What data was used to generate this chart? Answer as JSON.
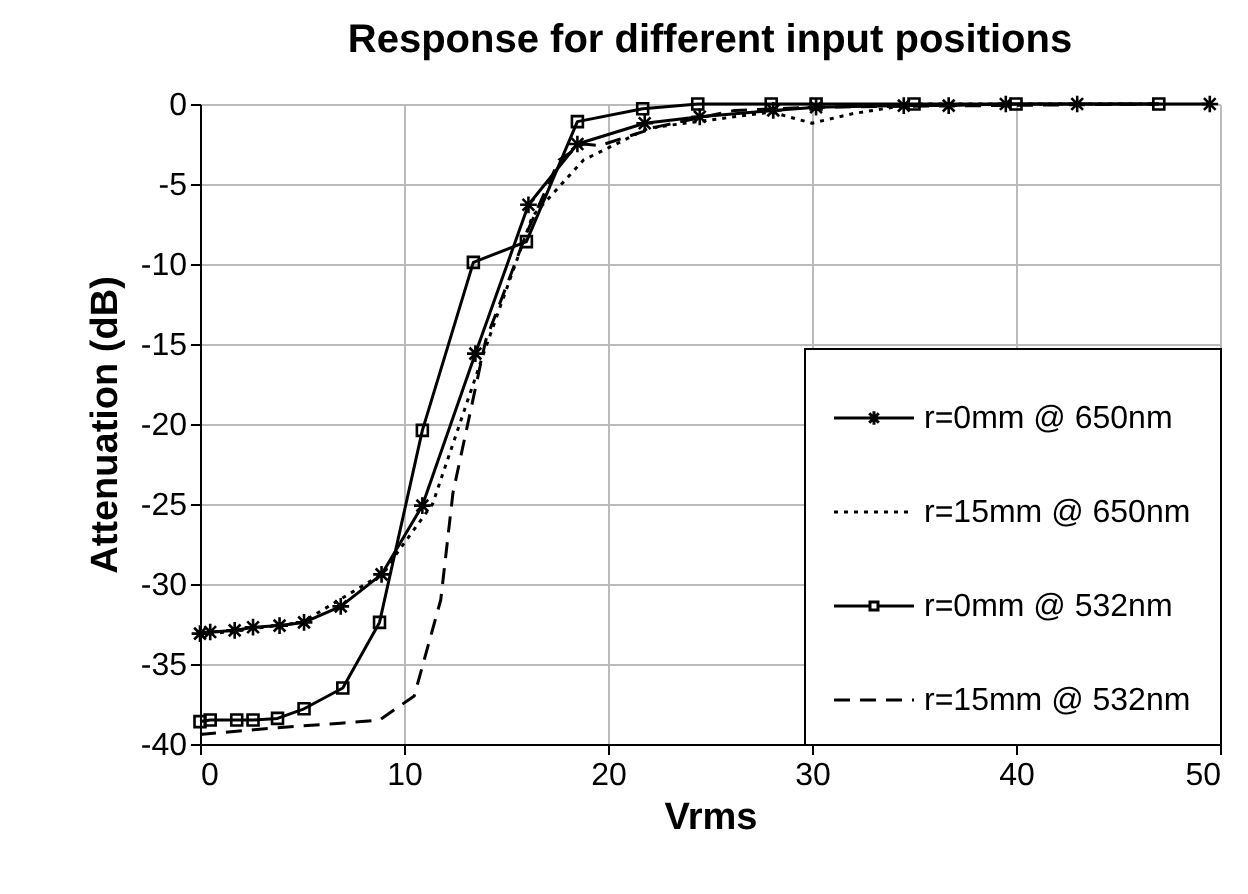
{
  "chart_data": {
    "type": "line",
    "title": "Response for different input positions",
    "xlabel": "Vrms",
    "ylabel": "Attenuation (dB)",
    "xlim": [
      0,
      50
    ],
    "xticks": [
      0,
      10,
      20,
      30,
      40,
      50
    ],
    "ylim": [
      -40,
      0
    ],
    "yticks": [
      -40,
      -35,
      -30,
      -25,
      -20,
      -15,
      -10,
      -5,
      0
    ],
    "grid": true,
    "legend": "bottom right",
    "series": [
      {
        "name": "r=0mm @ 650nm",
        "color": "#000000",
        "marker": "cross",
        "line_style": "solid",
        "x": [
          0,
          0.5,
          1.7,
          2.6,
          3.9,
          5.1,
          6.9,
          8.9,
          10.9,
          13.5,
          16.1,
          18.5,
          21.8,
          24.5,
          28.1,
          30.2,
          34.5,
          36.7,
          39.5,
          43,
          49.5
        ],
        "values": [
          -33.1,
          -33,
          -32.9,
          -32.7,
          -32.6,
          -32.4,
          -31.4,
          -29.4,
          -25.1,
          -15.6,
          -6.3,
          -2.5,
          -1.2,
          -0.8,
          -0.4,
          -0.2,
          -0.1,
          -0.1,
          0,
          0,
          0
        ]
      },
      {
        "name": "r=15mm @ 650nm",
        "color": "#000000",
        "marker": "none",
        "line_style": "dotted",
        "x": [
          0,
          5,
          8.9,
          11.4,
          13.9,
          16.3,
          18.8,
          22,
          25,
          28,
          30,
          32,
          35,
          47
        ],
        "values": [
          -33.2,
          -32.4,
          -29.4,
          -25,
          -15.6,
          -7,
          -3.5,
          -1.5,
          -1,
          -0.5,
          -1.2,
          -0.6,
          0,
          0
        ]
      },
      {
        "name": "r=0mm @ 532nm",
        "color": "#000000",
        "marker": "square",
        "line_style": "solid",
        "x": [
          0,
          0.5,
          1.8,
          2.6,
          3.8,
          5.1,
          7,
          8.8,
          10.9,
          13.4,
          16,
          18.5,
          21.7,
          24.4,
          28,
          30.2,
          35,
          40,
          47
        ],
        "values": [
          -38.6,
          -38.5,
          -38.5,
          -38.5,
          -38.4,
          -37.8,
          -36.5,
          -32.4,
          -20.4,
          -9.9,
          -8.6,
          -1.1,
          -0.3,
          0,
          0,
          0,
          0,
          0,
          0
        ]
      },
      {
        "name": "r=15mm @ 532nm",
        "color": "#000000",
        "marker": "none",
        "line_style": "dashed",
        "x": [
          0,
          3.6,
          6.9,
          8.8,
          10.5,
          11.8,
          12.4,
          14,
          16,
          17.6,
          18.8,
          19.6,
          22.5,
          26.2,
          30,
          47
        ],
        "values": [
          -39.4,
          -39,
          -38.7,
          -38.5,
          -37,
          -31,
          -24.3,
          -14.8,
          -8.1,
          -3.5,
          -2.5,
          -2.6,
          -1.4,
          -0.4,
          -0.2,
          0
        ]
      }
    ]
  }
}
